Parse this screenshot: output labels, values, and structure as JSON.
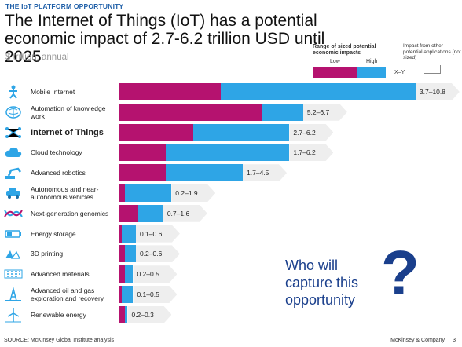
{
  "header": {
    "eyebrow": "THE IoT PLATFORM OPPORTUNITY",
    "title": "The Internet of Things (IoT) has a potential economic impact of 2.7-6.2 trillion USD until 2025",
    "subtitle": "$ trillion, annual"
  },
  "legend": {
    "title": "Range of sized potential economic impacts",
    "low_label": "Low",
    "high_label": "High",
    "note": "Impact from other potential applications (not sized)",
    "xy_label": "X–Y"
  },
  "colors": {
    "low": "#b5126f",
    "high": "#2ea5e6",
    "accent": "#1a3f8c"
  },
  "chart_data": {
    "type": "bar",
    "title": "The Internet of Things (IoT) has a potential economic impact of 2.7-6.2 trillion USD until 2025",
    "ylabel": "$ trillion, annual",
    "xlim": [
      0,
      10.8
    ],
    "stacked_range": true,
    "categories": [
      "Mobile Internet",
      "Automation of knowledge work",
      "Internet of Things",
      "Cloud technology",
      "Advanced robotics",
      "Autonomous and near-autonomous vehicles",
      "Next-generation genomics",
      "Energy storage",
      "3D printing",
      "Advanced materials",
      "Advanced oil and gas exploration and recovery",
      "Renewable energy"
    ],
    "series": [
      {
        "name": "Low",
        "values": [
          3.7,
          5.2,
          2.7,
          1.7,
          1.7,
          0.2,
          0.7,
          0.1,
          0.2,
          0.2,
          0.1,
          0.2
        ]
      },
      {
        "name": "High",
        "values": [
          10.8,
          6.7,
          6.2,
          6.2,
          4.5,
          1.9,
          1.6,
          0.6,
          0.6,
          0.5,
          0.5,
          0.3
        ]
      }
    ],
    "range_labels": [
      "3.7–10.8",
      "5.2–6.7",
      "2.7–6.2",
      "1.7–6.2",
      "1.7–4.5",
      "0.2–1.9",
      "0.7–1.6",
      "0.1–0.6",
      "0.2–0.6",
      "0.2–0.5",
      "0.1–0.5",
      "0.2–0.3"
    ],
    "highlight": "Internet of Things"
  },
  "rows": [
    {
      "label": "Mobile Internet",
      "icon": "person-signal-icon"
    },
    {
      "label": "Automation of knowledge work",
      "icon": "brain-icon"
    },
    {
      "label": "Internet of Things",
      "icon": "network-icon"
    },
    {
      "label": "Cloud technology",
      "icon": "cloud-icon"
    },
    {
      "label": "Advanced robotics",
      "icon": "robot-arm-icon"
    },
    {
      "label": "Autonomous and near-autonomous vehicles",
      "icon": "vehicle-icon"
    },
    {
      "label": "Next-generation genomics",
      "icon": "dna-icon"
    },
    {
      "label": "Energy storage",
      "icon": "battery-icon"
    },
    {
      "label": "3D printing",
      "icon": "printer-icon"
    },
    {
      "label": "Advanced materials",
      "icon": "materials-icon"
    },
    {
      "label": "Advanced oil and gas exploration and recovery",
      "icon": "oil-rig-icon"
    },
    {
      "label": "Renewable energy",
      "icon": "wind-turbine-icon"
    }
  ],
  "callout": {
    "text": "Who will capture this opportunity",
    "mark": "?"
  },
  "footer": {
    "source": "SOURCE: McKinsey Global Institute analysis",
    "company": "McKinsey & Company",
    "page": "3"
  }
}
